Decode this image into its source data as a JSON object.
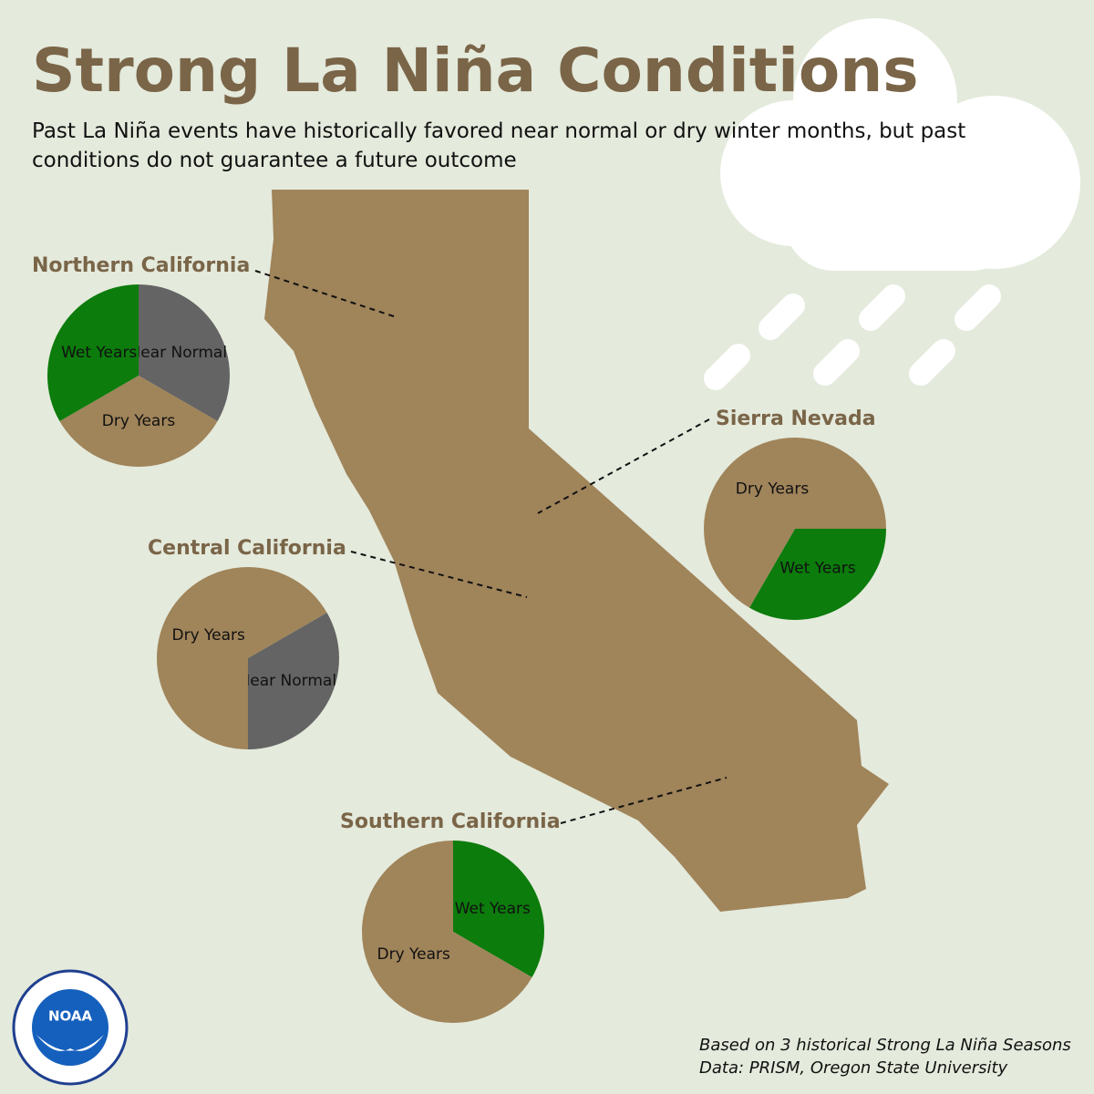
{
  "title": "Strong La Niña Conditions",
  "subtitle": "Past La Niña events have historically favored near normal or dry winter months, but past conditions do not guarantee a future outcome",
  "notes": [
    "Based on 3 historical Strong La Niña Seasons",
    "Data: PRISM, Oregon State University"
  ],
  "logo": "NOAA",
  "chart_data": [
    {
      "type": "pie",
      "title": "Northern California",
      "categories": [
        "Near Normal",
        "Dry Years",
        "Wet Years"
      ],
      "values": [
        1,
        1,
        1
      ],
      "colors": [
        "#646464",
        "#a0845a",
        "#0c7c0c"
      ]
    },
    {
      "type": "pie",
      "title": "Central California",
      "categories": [
        "Near Normal",
        "Dry Years"
      ],
      "values": [
        1,
        2
      ],
      "colors": [
        "#646464",
        "#a0845a"
      ]
    },
    {
      "type": "pie",
      "title": "Sierra Nevada",
      "categories": [
        "Wet Years",
        "Dry Years"
      ],
      "values": [
        1,
        2
      ],
      "colors": [
        "#0c7c0c",
        "#a0845a"
      ]
    },
    {
      "type": "pie",
      "title": "Southern California",
      "categories": [
        "Wet Years",
        "Dry Years"
      ],
      "values": [
        1,
        2
      ],
      "colors": [
        "#0c7c0c",
        "#a0845a"
      ]
    }
  ]
}
